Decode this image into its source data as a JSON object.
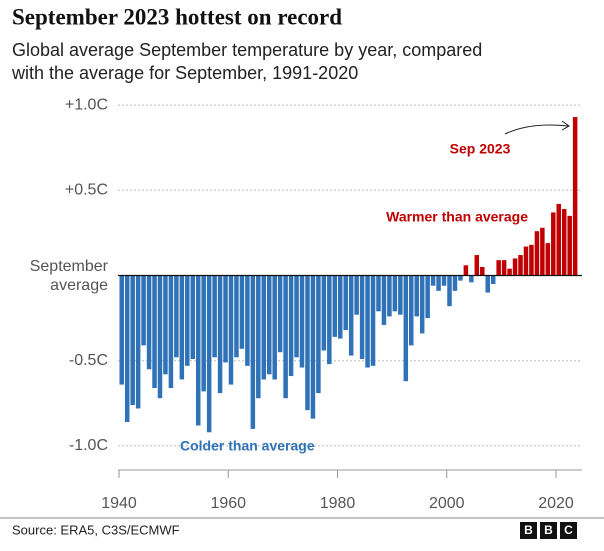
{
  "chart_data": {
    "type": "bar",
    "title": "September 2023 hottest on record",
    "subtitle": [
      "Global average September temperature by year, compared",
      "with the average for September, 1991-2020"
    ],
    "source": "Source: ERA5, C3S/ECMWF",
    "logo": [
      "B",
      "B",
      "C"
    ],
    "annotations": {
      "peak": "Sep 2023",
      "warm": "Warmer than average",
      "cold": "Colder than average"
    },
    "x": [
      1940,
      1941,
      1942,
      1943,
      1944,
      1945,
      1946,
      1947,
      1948,
      1949,
      1950,
      1951,
      1952,
      1953,
      1954,
      1955,
      1956,
      1957,
      1958,
      1959,
      1960,
      1961,
      1962,
      1963,
      1964,
      1965,
      1966,
      1967,
      1968,
      1969,
      1970,
      1971,
      1972,
      1973,
      1974,
      1975,
      1976,
      1977,
      1978,
      1979,
      1980,
      1981,
      1982,
      1983,
      1984,
      1985,
      1986,
      1987,
      1988,
      1989,
      1990,
      1991,
      1992,
      1993,
      1994,
      1995,
      1996,
      1997,
      1998,
      1999,
      2000,
      2001,
      2002,
      2003,
      2004,
      2005,
      2006,
      2007,
      2008,
      2009,
      2010,
      2011,
      2012,
      2013,
      2014,
      2015,
      2016,
      2017,
      2018,
      2019,
      2020,
      2021,
      2022,
      2023
    ],
    "values": [
      -0.64,
      -0.86,
      -0.76,
      -0.78,
      -0.41,
      -0.55,
      -0.66,
      -0.72,
      -0.58,
      -0.66,
      -0.48,
      -0.61,
      -0.53,
      -0.49,
      -0.88,
      -0.68,
      -0.92,
      -0.48,
      -0.69,
      -0.51,
      -0.64,
      -0.48,
      -0.43,
      -0.53,
      -0.9,
      -0.72,
      -0.61,
      -0.58,
      -0.61,
      -0.45,
      -0.72,
      -0.59,
      -0.48,
      -0.54,
      -0.79,
      -0.84,
      -0.69,
      -0.44,
      -0.52,
      -0.36,
      -0.37,
      -0.32,
      -0.47,
      -0.23,
      -0.49,
      -0.54,
      -0.53,
      -0.21,
      -0.29,
      -0.24,
      -0.21,
      -0.23,
      -0.62,
      -0.41,
      -0.24,
      -0.34,
      -0.25,
      -0.06,
      -0.09,
      -0.06,
      -0.18,
      -0.09,
      -0.03,
      0.06,
      -0.04,
      0.12,
      0.05,
      -0.1,
      -0.05,
      0.09,
      0.09,
      0.04,
      0.1,
      0.12,
      0.17,
      0.18,
      0.26,
      0.28,
      0.19,
      0.37,
      0.42,
      0.39,
      0.35,
      0.93
    ],
    "positive_color": "#c00000",
    "negative_color": "#2f72b8",
    "xlim": [
      1940,
      2024
    ],
    "xticks": [
      1940,
      1960,
      1980,
      2000,
      2020
    ],
    "ylim": [
      -1.15,
      1.15
    ],
    "yticks": [
      {
        "value": 1,
        "label": "+1.0C"
      },
      {
        "value": 0.5,
        "label": "+0.5C"
      },
      {
        "value": 0,
        "label": "September average"
      },
      {
        "value": -0.5,
        "label": "-0.5C"
      },
      {
        "value": -1,
        "label": "-1.0C"
      }
    ],
    "grid": true
  }
}
